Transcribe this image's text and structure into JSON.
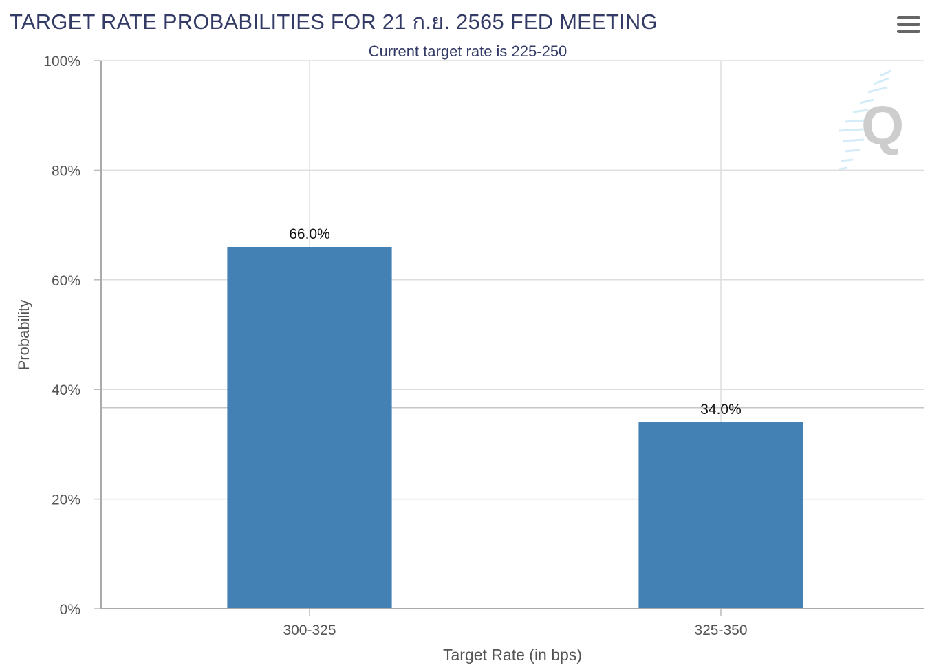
{
  "title": "TARGET RATE PROBABILITIES FOR 21 ก.ย. 2565 FED MEETING",
  "subtitle": "Current target rate is 225-250",
  "menu_icon": "hamburger-menu-icon",
  "watermark_icon": "q-logo-watermark",
  "colors": {
    "bar": "#4380b4",
    "title": "#333a66",
    "grid": "#dedede",
    "axis_text": "#555555"
  },
  "chart_data": {
    "type": "bar",
    "title": "TARGET RATE PROBABILITIES FOR 21 ก.ย. 2565 FED MEETING",
    "subtitle": "Current target rate is 225-250",
    "xlabel": "Target Rate (in bps)",
    "ylabel": "Probability",
    "categories": [
      "300-325",
      "325-350"
    ],
    "values": [
      66.0,
      34.0
    ],
    "data_labels": [
      "66.0%",
      "34.0%"
    ],
    "ylim": [
      0,
      100
    ],
    "yticks": [
      0,
      20,
      40,
      60,
      80,
      100
    ],
    "ytick_labels": [
      "0%",
      "20%",
      "40%",
      "60%",
      "80%",
      "100%"
    ],
    "reference_line_value": 36.7,
    "grid": true,
    "legend": "none"
  }
}
